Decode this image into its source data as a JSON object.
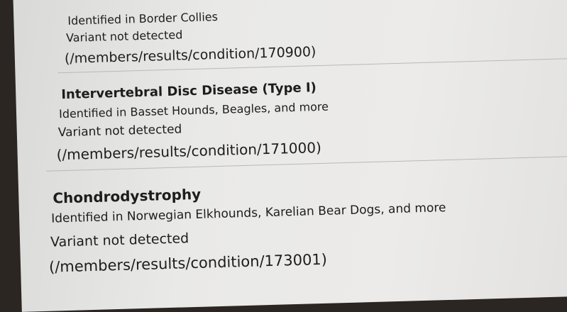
{
  "sections": [
    {
      "identified": "Identified in Border Collies",
      "status": "Variant not detected",
      "link": "(/members/results/condition/170900)"
    },
    {
      "title": "Intervertebral Disc Disease (Type I)",
      "identified": "Identified in Basset Hounds, Beagles, and more",
      "status": "Variant not detected",
      "link": "(/members/results/condition/171000)"
    },
    {
      "title": "Chondrodystrophy",
      "identified": "Identified in Norwegian Elkhounds, Karelian Bear Dogs, and more",
      "status": "Variant not detected",
      "link": "(/members/results/condition/173001)"
    }
  ]
}
